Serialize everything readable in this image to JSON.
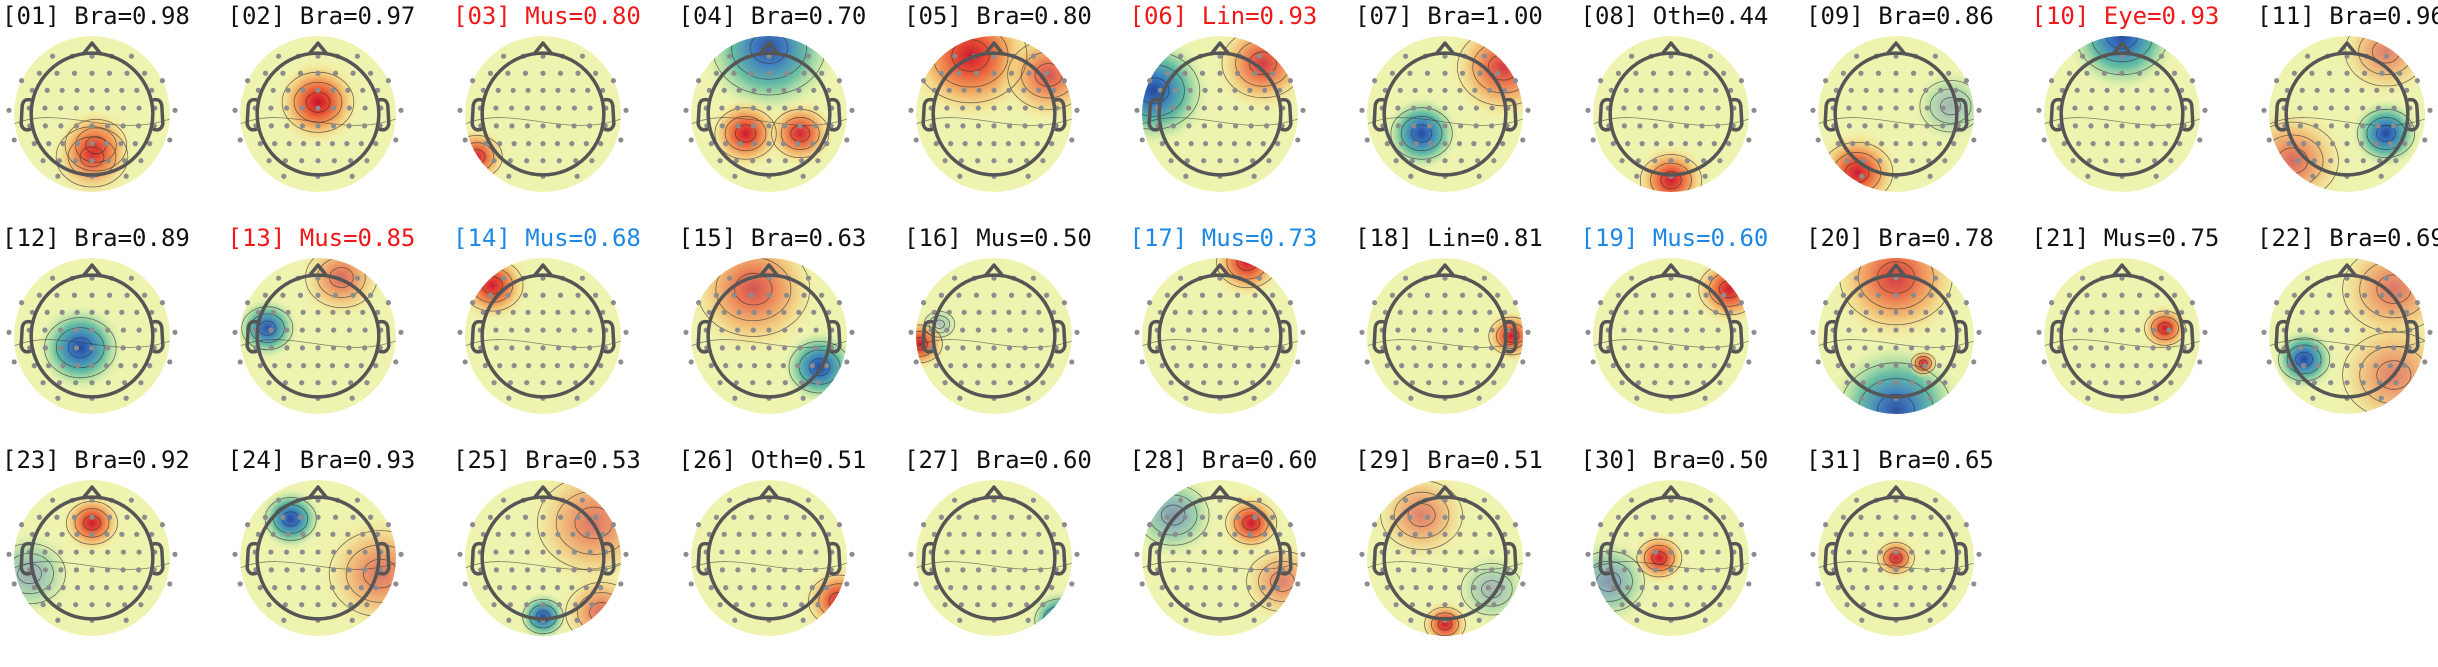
{
  "colors": {
    "flagged_red": "#f01818",
    "flagged_blue": "#1e88e5",
    "normal": "#111111"
  },
  "components": [
    {
      "id": "01",
      "label": "[01] Bra=0.98",
      "flag": "none",
      "warm": [
        [
          0.05,
          0.4,
          0.3,
          0.9
        ],
        [
          0.0,
          0.55,
          0.35,
          0.6
        ]
      ],
      "cool": []
    },
    {
      "id": "02",
      "label": "[02] Bra=0.97",
      "flag": "none",
      "warm": [
        [
          0.0,
          -0.15,
          0.35,
          1.0
        ]
      ],
      "cool": [
        [
          0.0,
          0.0,
          1.1,
          0.75,
          "ring"
        ]
      ]
    },
    {
      "id": "03",
      "label": "[03] Mus=0.80",
      "flag": "red",
      "warm": [
        [
          -0.85,
          0.55,
          0.25,
          0.9
        ]
      ],
      "cool": []
    },
    {
      "id": "04",
      "label": "[04] Bra=0.70",
      "flag": "none",
      "warm": [
        [
          -0.3,
          0.25,
          0.3,
          0.95
        ],
        [
          0.4,
          0.25,
          0.28,
          0.9
        ]
      ],
      "cool": [
        [
          0.0,
          -0.85,
          0.55,
          0.9
        ]
      ]
    },
    {
      "id": "05",
      "label": "[05] Bra=0.80",
      "flag": "none",
      "warm": [
        [
          -0.3,
          -0.75,
          0.55,
          0.95
        ],
        [
          0.7,
          -0.5,
          0.4,
          0.7
        ]
      ],
      "cool": []
    },
    {
      "id": "06",
      "label": "[06] Lin=0.93",
      "flag": "red",
      "warm": [
        [
          0.55,
          -0.65,
          0.4,
          0.8
        ]
      ],
      "cool": [
        [
          -0.85,
          -0.3,
          0.45,
          0.95
        ]
      ]
    },
    {
      "id": "07",
      "label": "[07] Bra=1.00",
      "flag": "none",
      "warm": [
        [
          0.75,
          -0.6,
          0.45,
          0.8
        ]
      ],
      "cool": [
        [
          -0.3,
          0.25,
          0.3,
          0.95
        ]
      ]
    },
    {
      "id": "08",
      "label": "[08] Oth=0.44",
      "flag": "none",
      "warm": [
        [
          0.0,
          0.85,
          0.3,
          0.95
        ]
      ],
      "cool": []
    },
    {
      "id": "09",
      "label": "[09] Bra=0.86",
      "flag": "none",
      "warm": [
        [
          -0.5,
          0.75,
          0.35,
          0.95
        ]
      ],
      "cool": [
        [
          0.7,
          -0.1,
          0.3,
          0.35
        ]
      ]
    },
    {
      "id": "10",
      "label": "[10] Eye=0.93",
      "flag": "red",
      "warm": [],
      "cool": [
        [
          0.0,
          -1.0,
          0.45,
          0.95
        ]
      ]
    },
    {
      "id": "11",
      "label": "[11] Bra=0.96",
      "flag": "none",
      "warm": [
        [
          -0.7,
          0.6,
          0.45,
          0.6
        ],
        [
          0.5,
          -0.8,
          0.4,
          0.5
        ]
      ],
      "cool": [
        [
          0.5,
          0.25,
          0.28,
          0.95
        ]
      ]
    },
    {
      "id": "12",
      "label": "[12] Bra=0.89",
      "flag": "none",
      "warm": [
        [
          0.0,
          0.0,
          1.1,
          0.55,
          "ring"
        ]
      ],
      "cool": [
        [
          -0.15,
          0.15,
          0.35,
          0.95
        ]
      ]
    },
    {
      "id": "13",
      "label": "[13] Mus=0.85",
      "flag": "red",
      "warm": [
        [
          0.3,
          -0.75,
          0.35,
          0.6
        ]
      ],
      "cool": [
        [
          -0.65,
          -0.1,
          0.25,
          0.9
        ]
      ]
    },
    {
      "id": "14",
      "label": "[14] Mus=0.68",
      "flag": "blue",
      "warm": [
        [
          -0.65,
          -0.65,
          0.3,
          0.95
        ]
      ],
      "cool": []
    },
    {
      "id": "15",
      "label": "[15] Bra=0.63",
      "flag": "none",
      "warm": [
        [
          -0.2,
          -0.6,
          0.55,
          0.7
        ]
      ],
      "cool": [
        [
          0.65,
          0.4,
          0.3,
          0.95
        ]
      ]
    },
    {
      "id": "16",
      "label": "[16] Mus=0.50",
      "flag": "none",
      "warm": [
        [
          -0.95,
          0.1,
          0.22,
          0.95
        ]
      ],
      "cool": [
        [
          -0.7,
          -0.15,
          0.15,
          0.3
        ]
      ]
    },
    {
      "id": "17",
      "label": "[17] Mus=0.73",
      "flag": "blue",
      "warm": [
        [
          0.35,
          -0.95,
          0.3,
          0.95
        ]
      ],
      "cool": []
    },
    {
      "id": "18",
      "label": "[18] Lin=0.81",
      "flag": "none",
      "warm": [
        [
          0.85,
          0.0,
          0.22,
          0.95
        ]
      ],
      "cool": []
    },
    {
      "id": "19",
      "label": "[19] Mus=0.60",
      "flag": "blue",
      "warm": [
        [
          0.75,
          -0.6,
          0.3,
          0.95
        ]
      ],
      "cool": []
    },
    {
      "id": "20",
      "label": "[20] Bra=0.78",
      "flag": "none",
      "warm": [
        [
          0.0,
          -0.75,
          0.55,
          0.8
        ],
        [
          0.35,
          0.35,
          0.12,
          0.9
        ]
      ],
      "cool": [
        [
          0.0,
          0.95,
          0.55,
          0.9
        ]
      ]
    },
    {
      "id": "21",
      "label": "[21] Mus=0.75",
      "flag": "none",
      "warm": [
        [
          0.55,
          -0.1,
          0.2,
          0.95
        ]
      ],
      "cool": []
    },
    {
      "id": "22",
      "label": "[22] Bra=0.69",
      "flag": "none",
      "warm": [
        [
          0.6,
          -0.6,
          0.5,
          0.55
        ],
        [
          0.6,
          0.5,
          0.5,
          0.5
        ]
      ],
      "cool": [
        [
          -0.55,
          0.3,
          0.25,
          0.95
        ]
      ]
    },
    {
      "id": "23",
      "label": "[23] Bra=0.92",
      "flag": "none",
      "warm": [
        [
          0.0,
          -0.45,
          0.25,
          0.95
        ]
      ],
      "cool": [
        [
          -0.8,
          0.2,
          0.35,
          0.4
        ]
      ]
    },
    {
      "id": "24",
      "label": "[24] Bra=0.93",
      "flag": "none",
      "warm": [
        [
          0.8,
          0.2,
          0.5,
          0.55
        ]
      ],
      "cool": [
        [
          -0.35,
          -0.5,
          0.25,
          0.95
        ]
      ]
    },
    {
      "id": "25",
      "label": "[25] Bra=0.53",
      "flag": "none",
      "warm": [
        [
          0.65,
          -0.45,
          0.55,
          0.55
        ],
        [
          0.75,
          0.7,
          0.35,
          0.6
        ]
      ],
      "cool": [
        [
          0.0,
          0.75,
          0.2,
          0.9
        ]
      ]
    },
    {
      "id": "26",
      "label": "[26] Oth=0.51",
      "flag": "none",
      "warm": [
        [
          0.9,
          0.55,
          0.3,
          0.9
        ]
      ],
      "cool": []
    },
    {
      "id": "27",
      "label": "[27] Bra=0.60",
      "flag": "none",
      "warm": [],
      "cool": [
        [
          0.85,
          0.8,
          0.25,
          0.95
        ]
      ]
    },
    {
      "id": "28",
      "label": "[28] Bra=0.60",
      "flag": "none",
      "warm": [
        [
          0.4,
          -0.45,
          0.25,
          0.95
        ],
        [
          0.8,
          0.3,
          0.35,
          0.5
        ]
      ],
      "cool": [
        [
          -0.6,
          -0.55,
          0.35,
          0.5
        ]
      ]
    },
    {
      "id": "29",
      "label": "[29] Bra=0.51",
      "flag": "none",
      "warm": [
        [
          -0.3,
          -0.55,
          0.4,
          0.5
        ],
        [
          0.0,
          0.85,
          0.2,
          0.95
        ]
      ],
      "cool": [
        [
          0.6,
          0.4,
          0.3,
          0.35
        ]
      ]
    },
    {
      "id": "30",
      "label": "[30] Bra=0.50",
      "flag": "none",
      "warm": [
        [
          -0.15,
          0.0,
          0.22,
          0.95
        ]
      ],
      "cool": [
        [
          -0.8,
          0.3,
          0.35,
          0.5
        ]
      ]
    },
    {
      "id": "31",
      "label": "[31] Bra=0.65",
      "flag": "none",
      "warm": [
        [
          0.0,
          0.0,
          0.18,
          0.9
        ]
      ],
      "cool": []
    }
  ]
}
